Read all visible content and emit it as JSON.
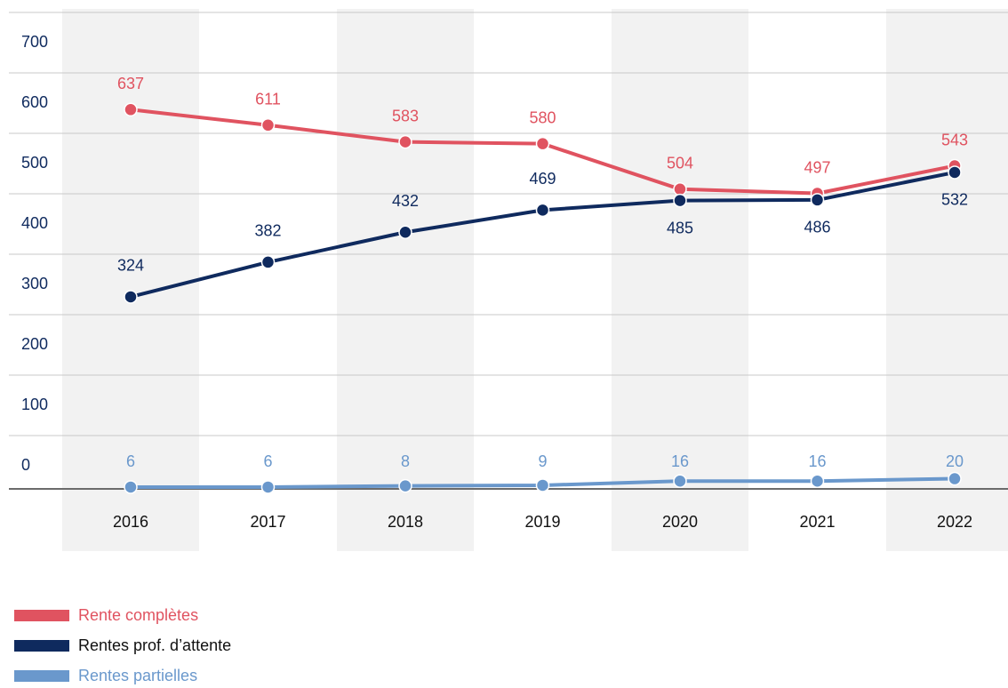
{
  "chart_data": {
    "type": "line",
    "title": "",
    "xlabel": "",
    "ylabel": "",
    "ylim": [
      0,
      700
    ],
    "yticks": [
      0,
      100,
      200,
      300,
      400,
      500,
      600,
      700
    ],
    "categories": [
      "2016",
      "2017",
      "2018",
      "2019",
      "2020",
      "2021",
      "2022"
    ],
    "grid": "horizontal",
    "alternating_column_shading": true,
    "legend_position": "bottom-left",
    "series": [
      {
        "name": "Rente complètes",
        "color": "#e05360",
        "values": [
          637,
          611,
          583,
          580,
          504,
          497,
          543
        ],
        "label_position": "above"
      },
      {
        "name": "Rentes prof. d’attente",
        "color": "#0f2a5e",
        "values": [
          324,
          382,
          432,
          469,
          485,
          486,
          532
        ],
        "label_position": "mixed"
      },
      {
        "name": "Rentes partielles",
        "color": "#6a98cc",
        "values": [
          6,
          6,
          8,
          9,
          16,
          16,
          20
        ],
        "label_position": "above"
      }
    ]
  },
  "colors": {
    "axis_text": "#0f2a5e",
    "grid": "#c8c8c8",
    "baseline": "#6b6b6b",
    "column_band": "#f2f2f2"
  }
}
